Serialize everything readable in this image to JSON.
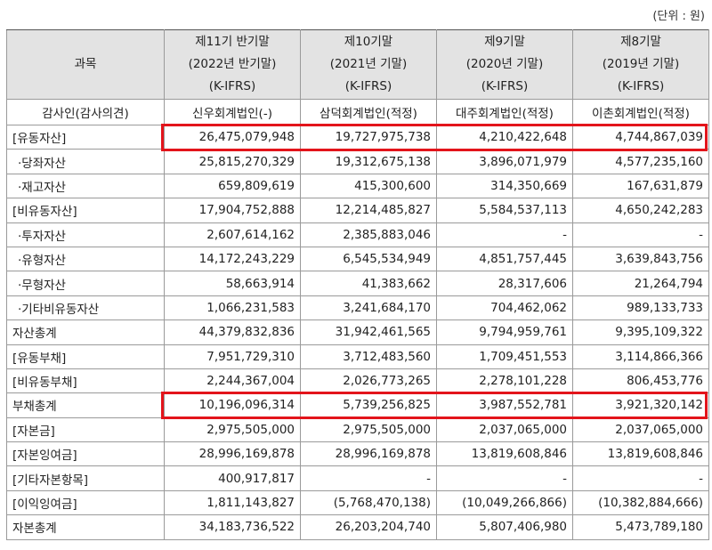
{
  "unit_label": "(단위 : 원)",
  "header": {
    "subject": "과목",
    "columns": [
      [
        "제11기 반기말",
        "(2022년 반기말)",
        "(K-IFRS)"
      ],
      [
        "제10기말",
        "(2021년 기말)",
        "(K-IFRS)"
      ],
      [
        "제9기말",
        "(2020년 기말)",
        "(K-IFRS)"
      ],
      [
        "제8기말",
        "(2019년 기말)",
        "(K-IFRS)"
      ]
    ]
  },
  "auditor_row": {
    "label": "감사인(감사의견)",
    "values": [
      "신우회계법인(-)",
      "삼덕회계법인(적정)",
      "대주회계법인(적정)",
      "이촌회계법인(적정)"
    ]
  },
  "rows": [
    {
      "label": "[유동자산]",
      "values": [
        "26,475,079,948",
        "19,727,975,738",
        "4,210,422,648",
        "4,744,867,039"
      ],
      "highlight": true
    },
    {
      "label": "·당좌자산",
      "values": [
        "25,815,270,329",
        "19,312,675,138",
        "3,896,071,979",
        "4,577,235,160"
      ]
    },
    {
      "label": "·재고자산",
      "values": [
        "659,809,619",
        "415,300,600",
        "314,350,669",
        "167,631,879"
      ]
    },
    {
      "label": "[비유동자산]",
      "values": [
        "17,904,752,888",
        "12,214,485,827",
        "5,584,537,113",
        "4,650,242,283"
      ]
    },
    {
      "label": "·투자자산",
      "values": [
        "2,607,614,162",
        "2,385,883,046",
        "-",
        "-"
      ]
    },
    {
      "label": "·유형자산",
      "values": [
        "14,172,243,229",
        "6,545,534,949",
        "4,851,757,445",
        "3,639,843,756"
      ]
    },
    {
      "label": "·무형자산",
      "values": [
        "58,663,914",
        "41,383,662",
        "28,317,606",
        "21,264,794"
      ]
    },
    {
      "label": "·기타비유동자산",
      "values": [
        "1,066,231,583",
        "3,241,684,170",
        "704,462,062",
        "989,133,733"
      ]
    },
    {
      "label": "자산총계",
      "values": [
        "44,379,832,836",
        "31,942,461,565",
        "9,794,959,761",
        "9,395,109,322"
      ]
    },
    {
      "label": "[유동부채]",
      "values": [
        "7,951,729,310",
        "3,712,483,560",
        "1,709,451,553",
        "3,114,866,366"
      ]
    },
    {
      "label": "[비유동부채]",
      "values": [
        "2,244,367,004",
        "2,026,773,265",
        "2,278,101,228",
        "806,453,776"
      ]
    },
    {
      "label": "부채총계",
      "values": [
        "10,196,096,314",
        "5,739,256,825",
        "3,987,552,781",
        "3,921,320,142"
      ],
      "highlight": true
    },
    {
      "label": "[자본금]",
      "values": [
        "2,975,505,000",
        "2,975,505,000",
        "2,037,065,000",
        "2,037,065,000"
      ]
    },
    {
      "label": "[자본잉여금]",
      "values": [
        "28,996,169,878",
        "28,996,169,878",
        "13,819,608,846",
        "13,819,608,846"
      ]
    },
    {
      "label": "[기타자본항목]",
      "values": [
        "400,917,817",
        "-",
        "-",
        "-"
      ]
    },
    {
      "label": "[이익잉여금]",
      "values": [
        "1,811,143,827",
        "(5,768,470,138)",
        "(10,049,266,866)",
        "(10,382,884,666)"
      ]
    },
    {
      "label": "자본총계",
      "values": [
        "34,183,736,522",
        "26,203,204,740",
        "5,807,406,980",
        "5,473,789,180"
      ]
    }
  ]
}
